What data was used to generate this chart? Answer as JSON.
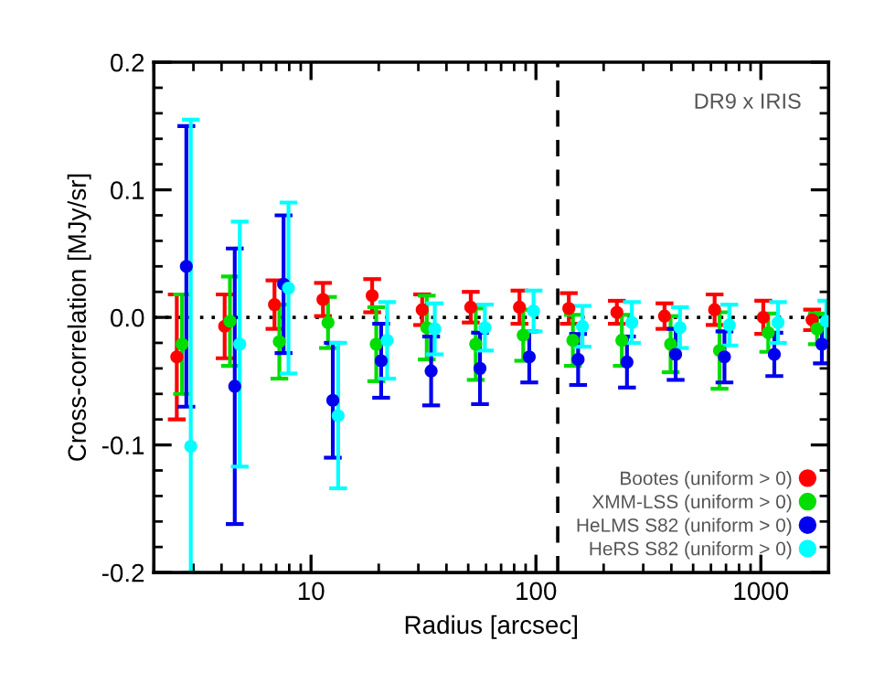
{
  "chart_data": {
    "type": "scatter",
    "xlabel": "Radius [arcsec]",
    "ylabel": "Cross-correlation [MJy/sr]",
    "annotations": [
      "DR9 x IRIS"
    ],
    "log": "x",
    "xlim": [
      2,
      2000
    ],
    "xticks": [
      10,
      100,
      1000
    ],
    "ylim": [
      -0.2,
      0.2
    ],
    "yticks": [
      {
        "value": -0.2,
        "label": "-0.2"
      },
      {
        "value": -0.1,
        "label": "-0.1"
      },
      {
        "value": 0,
        "label": "0.0"
      },
      {
        "value": 0.1,
        "label": "0.1"
      },
      {
        "value": 0.2,
        "label": "0.2"
      }
    ],
    "grid": false,
    "legend": "bottom right",
    "marker": "circle",
    "ref_lines": [
      {
        "axis": "y",
        "value": 0,
        "color": "#000000",
        "line_style": "dotted"
      },
      {
        "axis": "x",
        "value": 125,
        "color": "#000000",
        "line_style": "dashed"
      }
    ],
    "series": [
      {
        "name": "Bootes (uniform > 0)",
        "color": "#ff0000",
        "x": [
          2.53,
          4.13,
          6.88,
          11.3,
          18.7,
          31.2,
          51.3,
          84.5,
          140,
          229,
          373,
          623,
          1025,
          1690
        ],
        "values": [
          -0.031,
          -0.007,
          0.01,
          0.014,
          0.017,
          0.006,
          0.008,
          0.008,
          0.007,
          0.004,
          0.001,
          0.006,
          0.0,
          -0.002
        ],
        "errors": [
          0.049,
          0.025,
          0.019,
          0.013,
          0.013,
          0.012,
          0.012,
          0.013,
          0.012,
          0.009,
          0.01,
          0.012,
          0.013,
          0.008
        ]
      },
      {
        "name": "XMM-LSS (uniform > 0)",
        "color": "#00dd00",
        "x": [
          2.67,
          4.36,
          7.23,
          11.9,
          19.5,
          32.7,
          54,
          87.8,
          146,
          241,
          397,
          655,
          1079,
          1778
        ],
        "values": [
          -0.021,
          -0.003,
          -0.019,
          -0.004,
          -0.021,
          -0.008,
          -0.021,
          -0.014,
          -0.018,
          -0.018,
          -0.021,
          -0.026,
          -0.012,
          -0.009
        ],
        "errors": [
          0.039,
          0.035,
          0.029,
          0.02,
          0.029,
          0.025,
          0.028,
          0.02,
          0.02,
          0.02,
          0.022,
          0.03,
          0.015,
          0.012
        ]
      },
      {
        "name": "HeLMS S82 (uniform > 0)",
        "color": "#0000ee",
        "x": [
          2.79,
          4.58,
          7.55,
          12.5,
          20.5,
          34.2,
          56.4,
          93.4,
          154,
          254,
          418,
          689,
          1148,
          1868
        ],
        "values": [
          0.04,
          -0.054,
          0.026,
          -0.065,
          -0.034,
          -0.042,
          -0.04,
          -0.031,
          -0.033,
          -0.035,
          -0.029,
          -0.031,
          -0.029,
          -0.021
        ],
        "errors": [
          0.11,
          0.108,
          0.054,
          0.045,
          0.029,
          0.027,
          0.028,
          0.02,
          0.02,
          0.02,
          0.02,
          0.02,
          0.017,
          0.015
        ]
      },
      {
        "name": "HeRS S82 (uniform > 0)",
        "color": "#00ffff",
        "x": [
          2.92,
          4.82,
          7.94,
          13.2,
          21.8,
          35.5,
          59.3,
          97.6,
          161,
          267,
          437,
          724,
          1192,
          1955
        ],
        "values": [
          -0.101,
          -0.021,
          0.023,
          -0.077,
          -0.018,
          -0.009,
          -0.008,
          0.005,
          -0.007,
          -0.004,
          -0.008,
          -0.006,
          -0.004,
          -0.003
        ],
        "errors": [
          [
            -0.2,
            0.155
          ],
          0.096,
          0.067,
          0.057,
          0.03,
          0.02,
          0.018,
          0.016,
          0.016,
          0.016,
          0.016,
          0.016,
          0.016,
          0.016
        ]
      }
    ]
  }
}
